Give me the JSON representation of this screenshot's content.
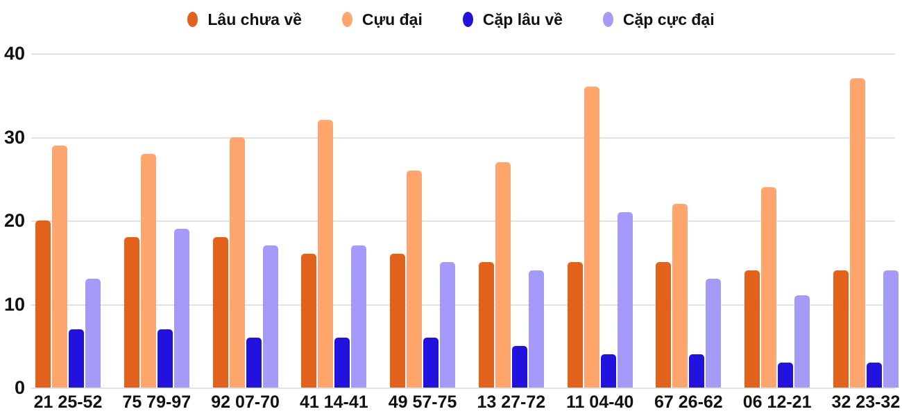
{
  "chart_data": {
    "type": "bar",
    "title": "",
    "xlabel": "",
    "ylabel": "",
    "categories": [
      "21 25-52",
      "75 79-97",
      "92 07-70",
      "41 14-41",
      "49 57-75",
      "13 27-72",
      "11 04-40",
      "67 26-62",
      "06 12-21",
      "32 23-32"
    ],
    "series": [
      {
        "name": "Lâu chưa về",
        "color": "#e2611b",
        "values": [
          20,
          18,
          18,
          16,
          16,
          15,
          15,
          15,
          14,
          14
        ]
      },
      {
        "name": "Cựu đại",
        "color": "#ffa56d",
        "values": [
          29,
          28,
          30,
          32,
          26,
          27,
          36,
          22,
          24,
          37
        ]
      },
      {
        "name": "Cặp lâu về",
        "color": "#2112dd",
        "values": [
          7,
          7,
          6,
          6,
          6,
          5,
          4,
          4,
          3,
          3
        ]
      },
      {
        "name": "Cặp cực đại",
        "color": "#a39bf7",
        "values": [
          13,
          19,
          17,
          17,
          15,
          14,
          21,
          13,
          11,
          14
        ]
      }
    ],
    "y_ticks": [
      0,
      10,
      20,
      30,
      40
    ],
    "ylim": [
      0,
      40
    ],
    "grid": true,
    "legend_position": "top"
  },
  "colors": {
    "gridline": "#e2e2e2",
    "text": "#111111",
    "background": "#ffffff"
  }
}
